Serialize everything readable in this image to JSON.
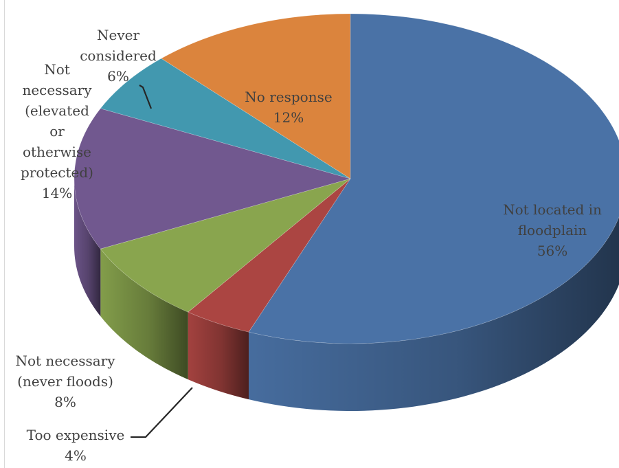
{
  "chart_data": {
    "type": "pie",
    "style": "3d",
    "slices": [
      {
        "label": "Not located in floodplain",
        "label_lines": [
          "Not located in",
          "floodplain",
          "56%"
        ],
        "value": 56,
        "color": "#4a72a6"
      },
      {
        "label": "Too expensive",
        "label_lines": [
          "Too expensive",
          "4%"
        ],
        "value": 4,
        "color": "#ab4542"
      },
      {
        "label": "Not necessary (never floods)",
        "label_lines": [
          "Not necessary",
          "(never floods)",
          "8%"
        ],
        "value": 8,
        "color": "#89a54e"
      },
      {
        "label": "Not necessary (elevated or otherwise protected)",
        "label_lines": [
          "Not",
          "necessary",
          "(elevated",
          "or",
          "otherwise",
          "protected)",
          "14%"
        ],
        "value": 14,
        "color": "#71588f"
      },
      {
        "label": "Never considered",
        "label_lines": [
          "Never",
          "considered",
          "6%"
        ],
        "value": 6,
        "color": "#4298af"
      },
      {
        "label": "No response",
        "label_lines": [
          "No response",
          "12%"
        ],
        "value": 12,
        "color": "#db843d"
      }
    ]
  }
}
